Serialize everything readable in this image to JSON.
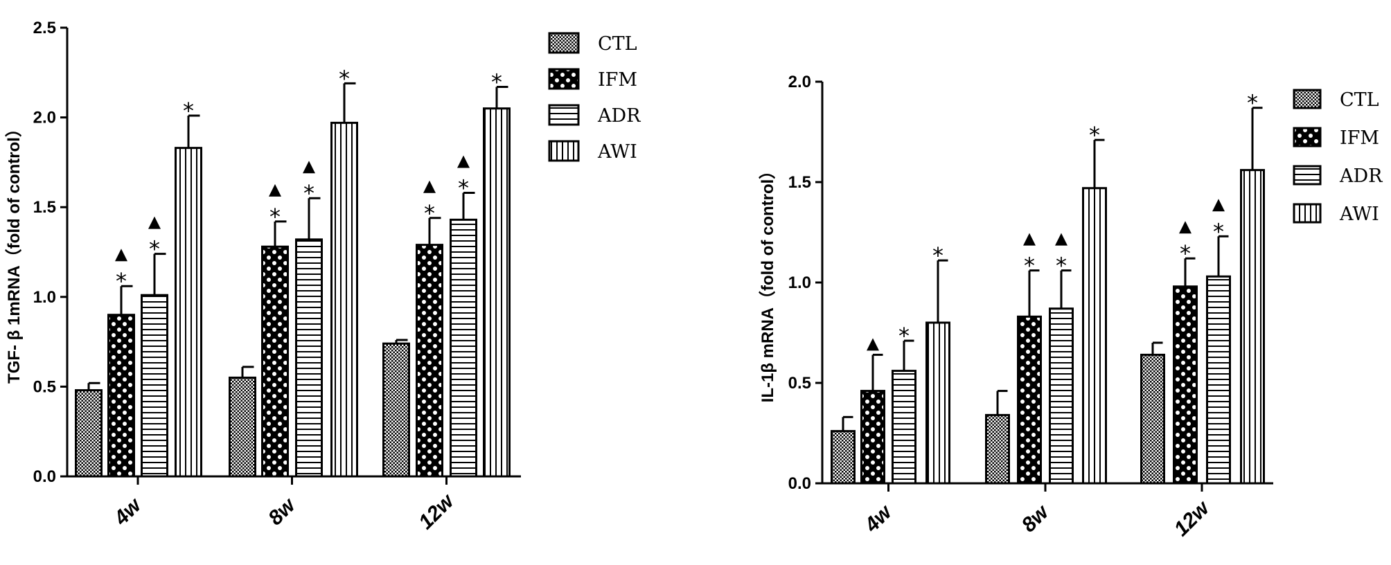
{
  "chart_data": [
    {
      "type": "bar",
      "categories": [
        "4w",
        "8w",
        "12w"
      ],
      "ylabel": "TGF- β 1mRNA（fold of control）",
      "ylim": [
        0,
        2.5
      ],
      "yticks": [
        "0.0",
        "0.5",
        "1.0",
        "1.5",
        "2.0",
        "2.5"
      ],
      "legend_position": "right",
      "series": [
        {
          "name": "CTL",
          "pattern": "dots",
          "values": [
            0.48,
            0.55,
            0.74
          ],
          "errors": [
            0.04,
            0.06,
            0.02
          ],
          "marks": [
            "",
            "",
            ""
          ]
        },
        {
          "name": "IFM",
          "pattern": "checker",
          "values": [
            0.9,
            1.28,
            1.29
          ],
          "errors": [
            0.16,
            0.14,
            0.15
          ],
          "marks": [
            "▲*",
            "▲*",
            "▲*"
          ]
        },
        {
          "name": "ADR",
          "pattern": "hlines",
          "values": [
            1.01,
            1.32,
            1.43
          ],
          "errors": [
            0.23,
            0.23,
            0.15
          ],
          "marks": [
            "▲*",
            "▲*",
            "▲*"
          ]
        },
        {
          "name": "AWI",
          "pattern": "vlines",
          "values": [
            1.83,
            1.97,
            2.05
          ],
          "errors": [
            0.18,
            0.22,
            0.12
          ],
          "marks": [
            "*",
            "*",
            "*"
          ]
        }
      ]
    },
    {
      "type": "bar",
      "categories": [
        "4w",
        "8w",
        "12w"
      ],
      "ylabel": "IL-1β  mRNA（fold of control）",
      "ylim": [
        0,
        2.0
      ],
      "yticks": [
        "0.0",
        "0.5",
        "1.0",
        "1.5",
        "2.0"
      ],
      "legend_position": "right",
      "series": [
        {
          "name": "CTL",
          "pattern": "dots",
          "values": [
            0.26,
            0.34,
            0.64
          ],
          "errors": [
            0.07,
            0.12,
            0.06
          ],
          "marks": [
            "",
            "",
            ""
          ]
        },
        {
          "name": "IFM",
          "pattern": "checker",
          "values": [
            0.46,
            0.83,
            0.98
          ],
          "errors": [
            0.18,
            0.23,
            0.14
          ],
          "marks": [
            "▲",
            "▲*",
            "▲*"
          ]
        },
        {
          "name": "ADR",
          "pattern": "hlines",
          "values": [
            0.56,
            0.87,
            1.03
          ],
          "errors": [
            0.15,
            0.19,
            0.2
          ],
          "marks": [
            "*",
            "▲*",
            "▲*"
          ]
        },
        {
          "name": "AWI",
          "pattern": "vlines",
          "values": [
            0.8,
            1.47,
            1.56
          ],
          "errors": [
            0.31,
            0.24,
            0.31
          ],
          "marks": [
            "*",
            "*",
            "*"
          ]
        }
      ]
    }
  ]
}
